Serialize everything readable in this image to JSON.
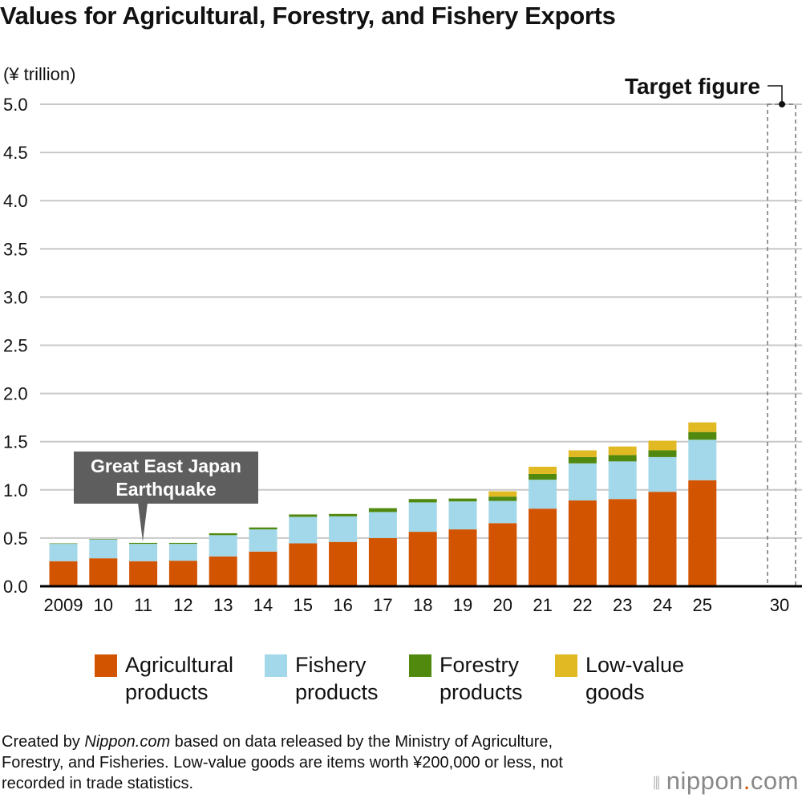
{
  "chart_data": {
    "type": "bar",
    "stacked": true,
    "title": "Values for Agricultural, Forestry, and Fishery Exports",
    "ylabel": "(¥ trillion)",
    "ylim": [
      0,
      5.0
    ],
    "yticks": [
      "0.0",
      "0.5",
      "1.0",
      "1.5",
      "2.0",
      "2.5",
      "3.0",
      "3.5",
      "4.0",
      "4.5",
      "5.0"
    ],
    "categories": [
      "2009",
      "10",
      "11",
      "12",
      "13",
      "14",
      "15",
      "16",
      "17",
      "18",
      "19",
      "20",
      "21",
      "22",
      "23",
      "24",
      "25"
    ],
    "series": [
      {
        "name": "Agricultural products",
        "color": "#d35400",
        "values": [
          0.26,
          0.29,
          0.26,
          0.265,
          0.31,
          0.36,
          0.445,
          0.46,
          0.5,
          0.565,
          0.59,
          0.655,
          0.805,
          0.89,
          0.905,
          0.98,
          1.1
        ]
      },
      {
        "name": "Fishery products",
        "color": "#a2d8e9",
        "values": [
          0.18,
          0.195,
          0.18,
          0.175,
          0.22,
          0.23,
          0.275,
          0.265,
          0.27,
          0.305,
          0.29,
          0.23,
          0.3,
          0.385,
          0.39,
          0.36,
          0.42
        ]
      },
      {
        "name": "Forestry products",
        "color": "#51890f",
        "values": [
          0.005,
          0.005,
          0.01,
          0.01,
          0.02,
          0.02,
          0.025,
          0.025,
          0.04,
          0.035,
          0.03,
          0.045,
          0.06,
          0.065,
          0.065,
          0.07,
          0.08
        ]
      },
      {
        "name": "Low-value goods",
        "color": "#e0b923",
        "values": [
          0,
          0,
          0,
          0,
          0,
          0,
          0,
          0,
          0,
          0,
          0,
          0.055,
          0.075,
          0.07,
          0.09,
          0.1,
          0.1
        ]
      }
    ],
    "target": {
      "category": "30",
      "value": 5.0,
      "label": "Target figure"
    },
    "annotation": {
      "category": "11",
      "label_line1": "Great East Japan",
      "label_line2": "Earthquake"
    },
    "legend": [
      {
        "line1": "Agricultural",
        "line2": "products"
      },
      {
        "line1": "Fishery",
        "line2": "products"
      },
      {
        "line1": "Forestry",
        "line2": "products"
      },
      {
        "line1": "Low-value",
        "line2": "goods"
      }
    ],
    "legend_position": "bottom"
  },
  "footer": {
    "pre": "Created by ",
    "brand": "Nippon.com",
    "post": " based on data released by the Ministry of Agriculture, Forestry, and Fisheries. Low-value goods are items worth ¥200,000 or less, not recorded in trade statistics."
  },
  "logo": {
    "main": "nippon",
    "dot": ".",
    "tail": "com"
  }
}
